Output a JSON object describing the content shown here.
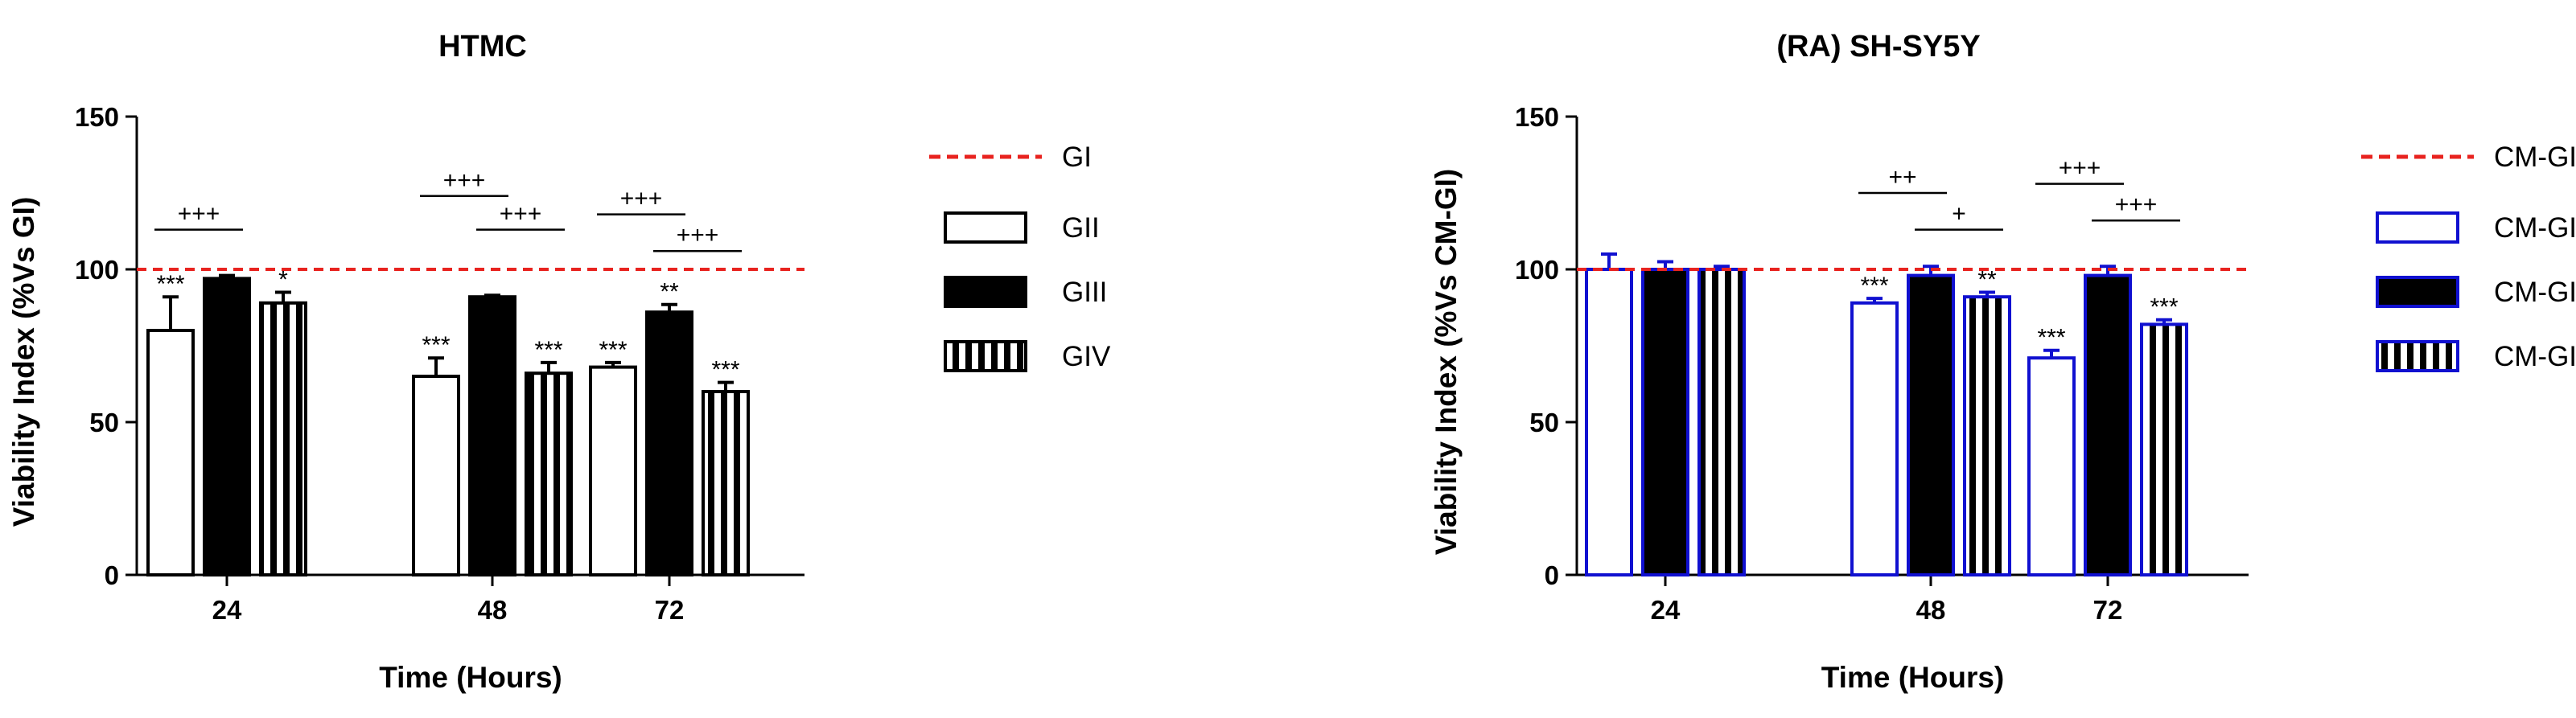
{
  "chart_data": [
    {
      "type": "bar",
      "title": "HTMC",
      "xlabel": "Time (Hours)",
      "ylabel": "Viability Index (%Vs GI)",
      "categories": [
        "24",
        "48",
        "72"
      ],
      "ylim": [
        0,
        150
      ],
      "yticks": [
        "0",
        "50",
        "100",
        "150"
      ],
      "reference_line": {
        "name": "GI",
        "value": 100,
        "color": "#e8231f"
      },
      "series": [
        {
          "name": "GII",
          "style": "open",
          "values": [
            80,
            65,
            68
          ],
          "errors": [
            11,
            6,
            1.5
          ],
          "stars": [
            "***",
            "***",
            "***"
          ]
        },
        {
          "name": "GIII",
          "style": "solid",
          "values": [
            97,
            91,
            86
          ],
          "errors": [
            1,
            0.5,
            2.5
          ],
          "stars": [
            "",
            "",
            "**"
          ]
        },
        {
          "name": "GIV",
          "style": "striped",
          "values": [
            89,
            66,
            60
          ],
          "errors": [
            3.5,
            3.5,
            3
          ],
          "stars": [
            "*",
            "***",
            "***"
          ]
        }
      ],
      "brackets": [
        {
          "label": "+++",
          "category": 0,
          "from": 0,
          "to": 1,
          "y": 113
        },
        {
          "label": "+++",
          "category": 1,
          "from": 0,
          "to": 1,
          "y": 124
        },
        {
          "label": "+++",
          "category": 1,
          "from": 1,
          "to": 2,
          "y": 113
        },
        {
          "label": "+++",
          "category": 2,
          "from": 0,
          "to": 1,
          "y": 118
        },
        {
          "label": "+++",
          "category": 2,
          "from": 1,
          "to": 2,
          "y": 106
        }
      ],
      "bar_color": "#000000",
      "legend_position": "right"
    },
    {
      "type": "bar",
      "title": "(RA) SH-SY5Y",
      "xlabel": "Time (Hours)",
      "ylabel": "Viability Index (%Vs CM-GI)",
      "categories": [
        "24",
        "48",
        "72"
      ],
      "ylim": [
        0,
        150
      ],
      "yticks": [
        "0",
        "50",
        "100",
        "150"
      ],
      "reference_line": {
        "name": "CM-GI",
        "value": 100,
        "color": "#e8231f"
      },
      "series": [
        {
          "name": "CM-GII",
          "style": "open",
          "values": [
            100,
            89,
            71
          ],
          "errors": [
            5,
            1.5,
            2.5
          ],
          "stars": [
            "",
            "***",
            "***"
          ]
        },
        {
          "name": "CM-GIII",
          "style": "solid",
          "values": [
            100,
            98,
            98
          ],
          "errors": [
            2.5,
            3,
            3
          ],
          "stars": [
            "",
            "",
            ""
          ]
        },
        {
          "name": "CM-GIV",
          "style": "striped",
          "values": [
            100,
            91,
            82
          ],
          "errors": [
            1,
            1.5,
            1.5
          ],
          "stars": [
            "",
            "**",
            "***"
          ]
        }
      ],
      "brackets": [
        {
          "label": "++",
          "category": 1,
          "from": 0,
          "to": 1,
          "y": 125
        },
        {
          "label": "+",
          "category": 1,
          "from": 1,
          "to": 2,
          "y": 113
        },
        {
          "label": "+++",
          "category": 2,
          "from": 0,
          "to": 1,
          "y": 128
        },
        {
          "label": "+++",
          "category": 2,
          "from": 1,
          "to": 2,
          "y": 116
        }
      ],
      "bar_color": "#1010d0",
      "legend_position": "right"
    }
  ]
}
